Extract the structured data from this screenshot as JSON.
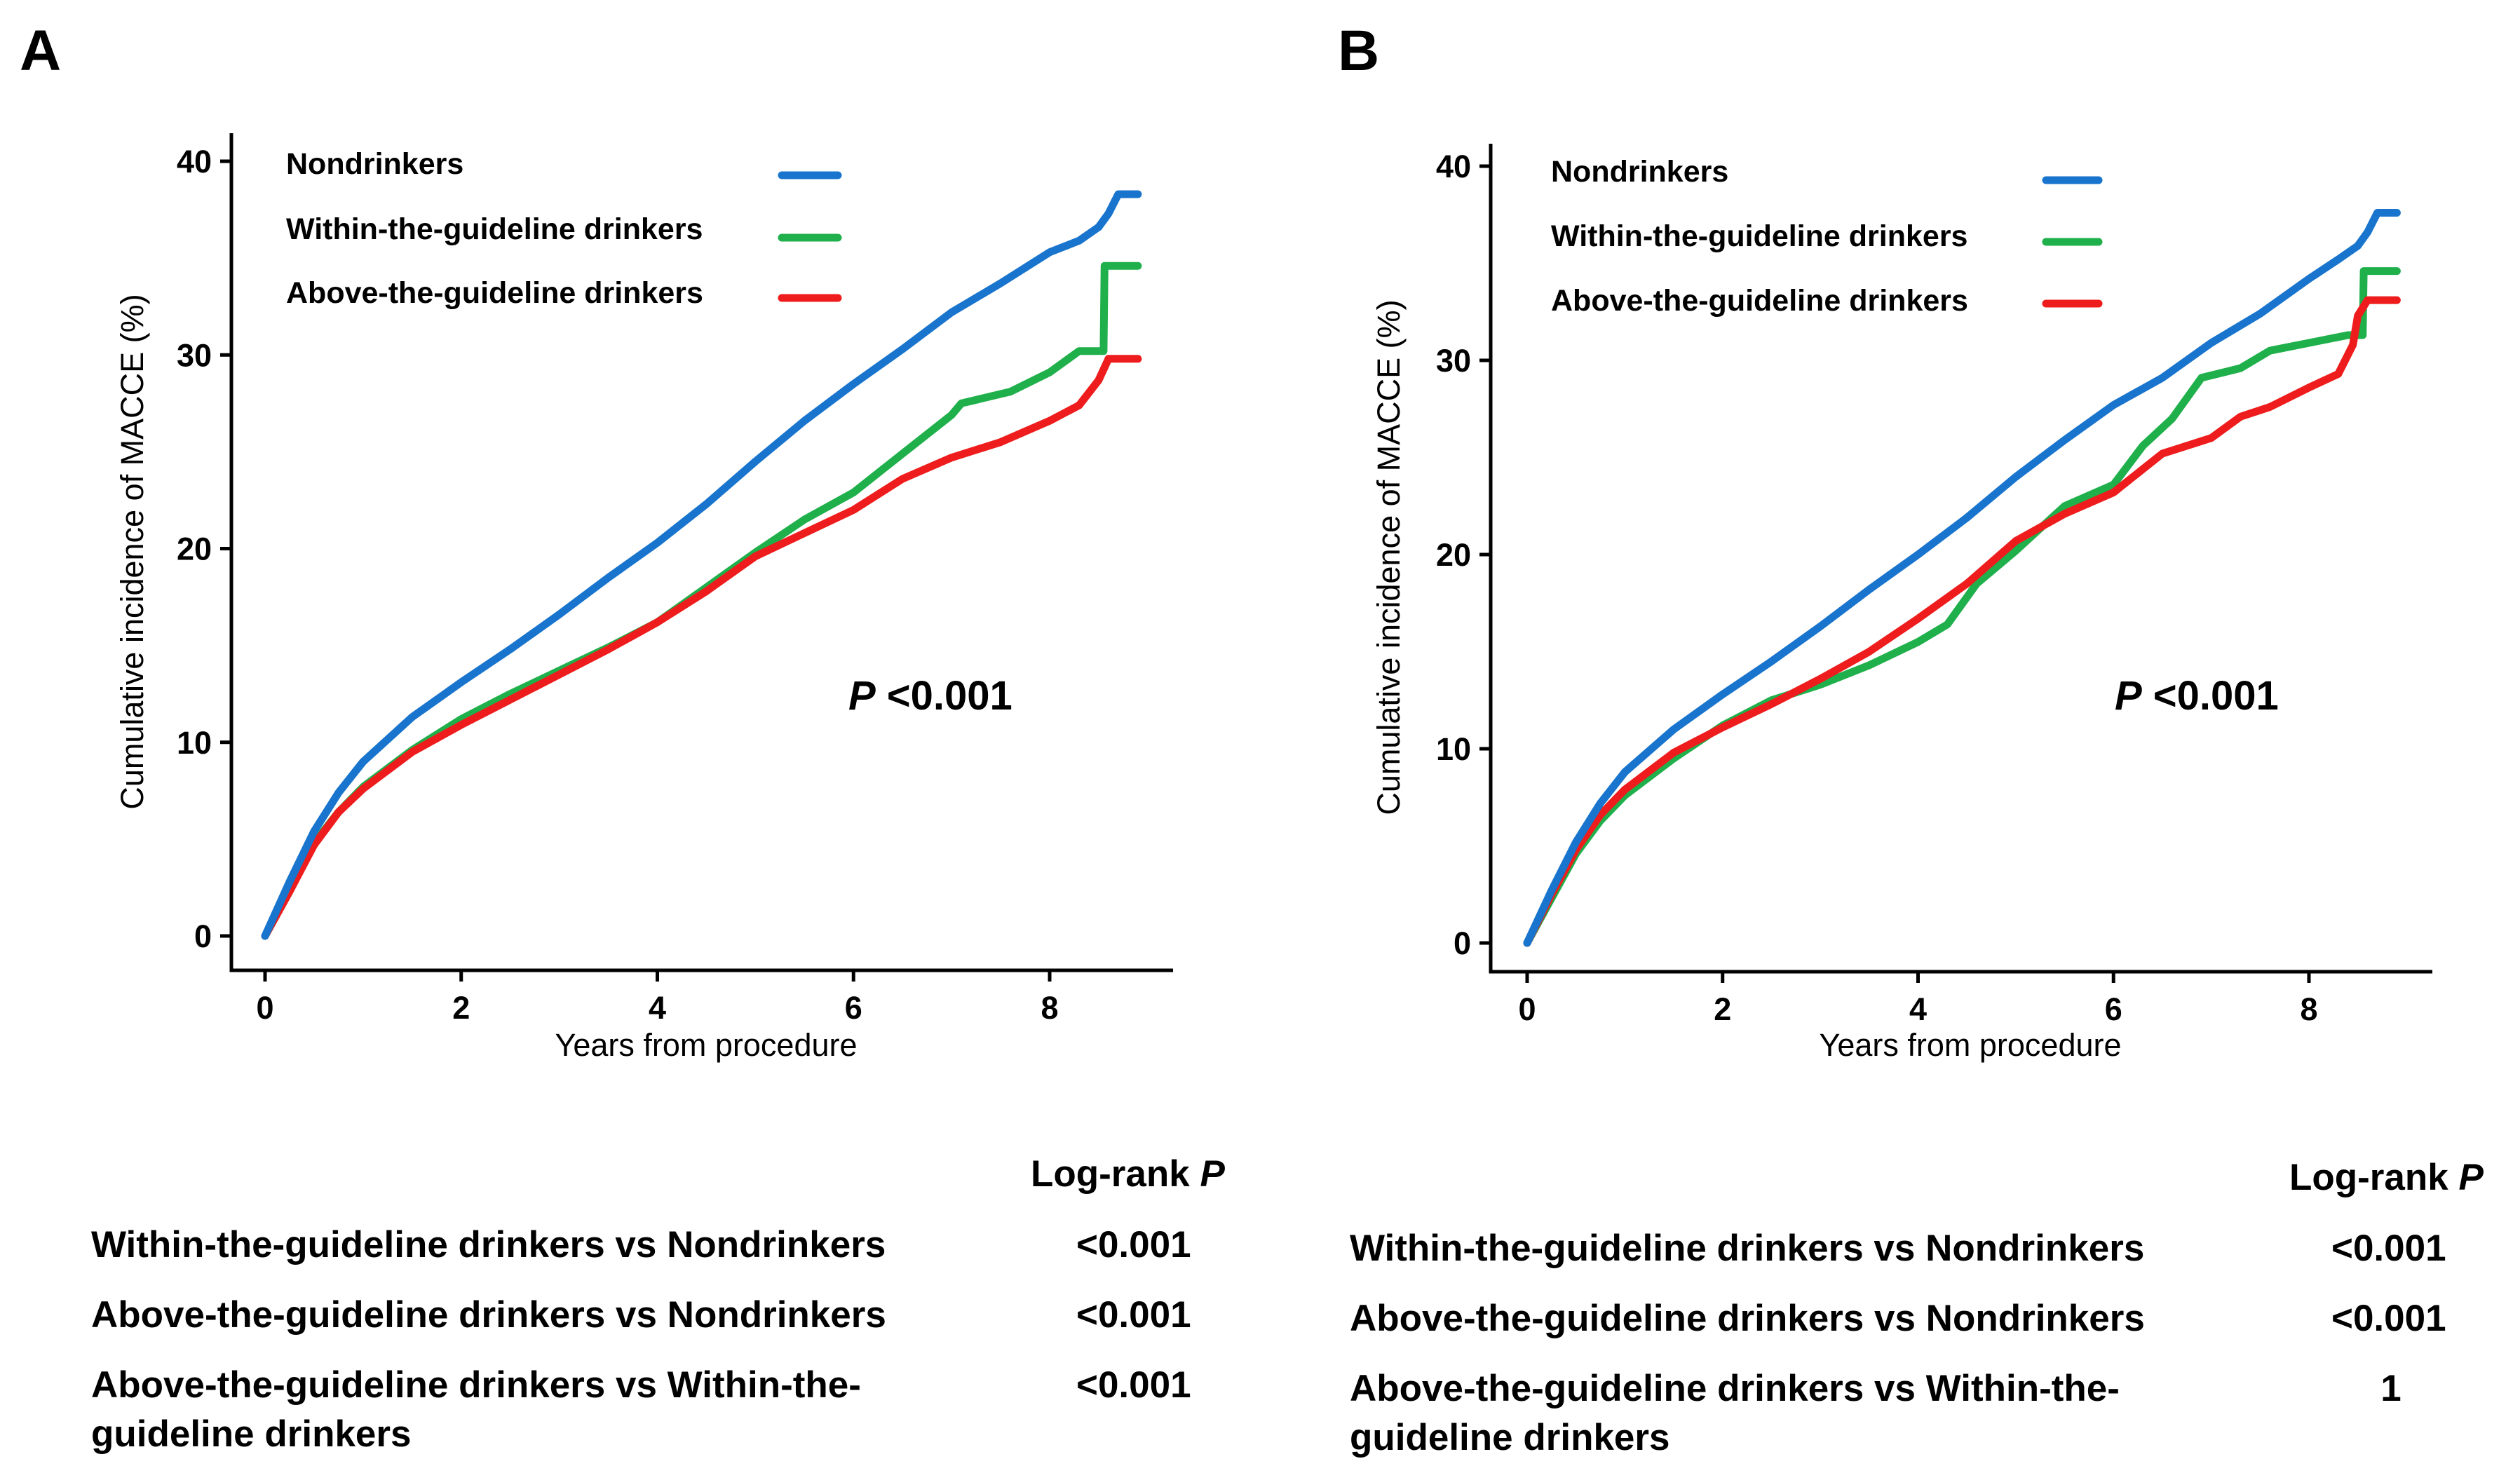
{
  "chart_data": [
    {
      "panel_label": "A",
      "type": "line",
      "subtype": "kaplan-meier cumulative incidence",
      "xlabel": "Years from procedure",
      "ylabel": "Cumulative incidence of MACCE (%)",
      "xlim": [
        0,
        9
      ],
      "ylim": [
        0,
        40
      ],
      "xticks": [
        0,
        2,
        4,
        6,
        8
      ],
      "yticks": [
        0,
        10,
        20,
        30,
        40
      ],
      "grid": false,
      "legend_position": "top-left",
      "annotation": {
        "italic": "P",
        "text": " <0.001"
      },
      "series": [
        {
          "name": "Nondrinkers",
          "color": "#1874cd",
          "x": [
            0,
            0.25,
            0.5,
            0.75,
            1,
            1.5,
            2,
            2.5,
            3,
            3.5,
            4,
            4.5,
            5,
            5.5,
            6,
            6.5,
            7,
            7.5,
            8,
            8.3,
            8.5,
            8.6,
            8.7,
            8.9
          ],
          "y": [
            0,
            2.8,
            5.4,
            7.4,
            9.0,
            11.3,
            13.1,
            14.8,
            16.6,
            18.5,
            20.3,
            22.3,
            24.5,
            26.6,
            28.5,
            30.3,
            32.2,
            33.7,
            35.3,
            35.9,
            36.6,
            37.3,
            38.3,
            38.3
          ]
        },
        {
          "name": "Within-the-guideline drinkers",
          "color": "#1fb04b",
          "x": [
            0,
            0.25,
            0.5,
            0.75,
            1,
            1.5,
            2,
            2.5,
            3,
            3.5,
            4,
            4.5,
            5,
            5.5,
            6,
            6.5,
            7,
            7.1,
            7.6,
            8.0,
            8.3,
            8.55,
            8.56,
            8.9
          ],
          "y": [
            0,
            2.3,
            4.8,
            6.4,
            7.7,
            9.6,
            11.2,
            12.5,
            13.7,
            14.9,
            16.2,
            18.0,
            19.8,
            21.5,
            22.9,
            24.9,
            26.9,
            27.5,
            28.1,
            29.1,
            30.2,
            30.2,
            34.6,
            34.6
          ]
        },
        {
          "name": "Above-the-guideline drinkers",
          "color": "#ee1c1c",
          "x": [
            0,
            0.25,
            0.5,
            0.75,
            1,
            1.5,
            2,
            2.5,
            3,
            3.5,
            4,
            4.5,
            5,
            5.5,
            6,
            6.5,
            7,
            7.5,
            8,
            8.3,
            8.5,
            8.6,
            8.9
          ],
          "y": [
            0,
            2.3,
            4.7,
            6.4,
            7.6,
            9.5,
            10.9,
            12.2,
            13.5,
            14.8,
            16.2,
            17.8,
            19.6,
            20.8,
            22.0,
            23.6,
            24.7,
            25.5,
            26.6,
            27.4,
            28.7,
            29.8,
            29.8
          ]
        }
      ],
      "table": {
        "header": {
          "text": "Log-rank ",
          "italic": "P"
        },
        "rows": [
          {
            "comparison": [
              "Within-the-guideline drinkers vs Nondrinkers"
            ],
            "p": "<0.001"
          },
          {
            "comparison": [
              "Above-the-guideline drinkers vs Nondrinkers"
            ],
            "p": "<0.001"
          },
          {
            "comparison": [
              "Above-the-guideline drinkers  vs Within-the-",
              "guideline drinkers"
            ],
            "p": "<0.001"
          }
        ]
      }
    },
    {
      "panel_label": "B",
      "type": "line",
      "subtype": "kaplan-meier cumulative incidence",
      "xlabel": "Years from procedure",
      "ylabel": "Cumulative incidence of MACCE (%)",
      "xlim": [
        0,
        9
      ],
      "ylim": [
        0,
        40
      ],
      "xticks": [
        0,
        2,
        4,
        6,
        8
      ],
      "yticks": [
        0,
        10,
        20,
        30,
        40
      ],
      "grid": false,
      "legend_position": "top-left",
      "annotation": {
        "italic": "P",
        "text": " <0.001"
      },
      "series": [
        {
          "name": "Nondrinkers",
          "color": "#1874cd",
          "x": [
            0,
            0.25,
            0.5,
            0.75,
            1,
            1.5,
            2,
            2.5,
            3,
            3.5,
            4,
            4.5,
            5,
            5.5,
            6,
            6.5,
            7,
            7.5,
            8,
            8.3,
            8.5,
            8.6,
            8.7,
            8.9
          ],
          "y": [
            0,
            2.7,
            5.2,
            7.2,
            8.8,
            11.0,
            12.8,
            14.5,
            16.3,
            18.2,
            20.0,
            21.9,
            24.0,
            25.9,
            27.7,
            29.1,
            30.9,
            32.4,
            34.2,
            35.2,
            35.9,
            36.6,
            37.6,
            37.6
          ]
        },
        {
          "name": "Within-the-guideline drinkers",
          "color": "#1fb04b",
          "x": [
            0,
            0.25,
            0.5,
            0.75,
            1,
            1.5,
            2,
            2.5,
            3,
            3.5,
            4,
            4.3,
            4.6,
            5,
            5.5,
            6,
            6.3,
            6.6,
            6.9,
            7.3,
            7.6,
            8.0,
            8.4,
            8.55,
            8.56,
            8.9
          ],
          "y": [
            0,
            2.3,
            4.6,
            6.3,
            7.6,
            9.5,
            11.2,
            12.5,
            13.3,
            14.3,
            15.5,
            16.4,
            18.5,
            20.2,
            22.5,
            23.6,
            25.6,
            27.0,
            29.1,
            29.6,
            30.5,
            30.9,
            31.3,
            31.3,
            34.6,
            34.6
          ]
        },
        {
          "name": "Above-the-guideline drinkers",
          "color": "#ee1c1c",
          "x": [
            0,
            0.25,
            0.5,
            0.75,
            1,
            1.5,
            2,
            2.5,
            3,
            3.5,
            4,
            4.5,
            5,
            5.5,
            6,
            6.5,
            7,
            7.3,
            7.6,
            8.0,
            8.3,
            8.45,
            8.5,
            8.6,
            8.9
          ],
          "y": [
            0,
            2.5,
            4.8,
            6.6,
            7.9,
            9.8,
            11.1,
            12.3,
            13.6,
            15.0,
            16.7,
            18.5,
            20.7,
            22.1,
            23.2,
            25.2,
            26.0,
            27.1,
            27.6,
            28.6,
            29.3,
            30.8,
            32.3,
            33.1,
            33.1
          ]
        }
      ],
      "table": {
        "header": {
          "text": "Log-rank ",
          "italic": "P"
        },
        "rows": [
          {
            "comparison": [
              "Within-the-guideline drinkers vs Nondrinkers"
            ],
            "p": "<0.001"
          },
          {
            "comparison": [
              "Above-the-guideline drinkers vs Nondrinkers"
            ],
            "p": "<0.001"
          },
          {
            "comparison": [
              "Above-the-guideline drinkers  vs Within-the-",
              "guideline drinkers"
            ],
            "p": "1"
          }
        ]
      }
    }
  ]
}
